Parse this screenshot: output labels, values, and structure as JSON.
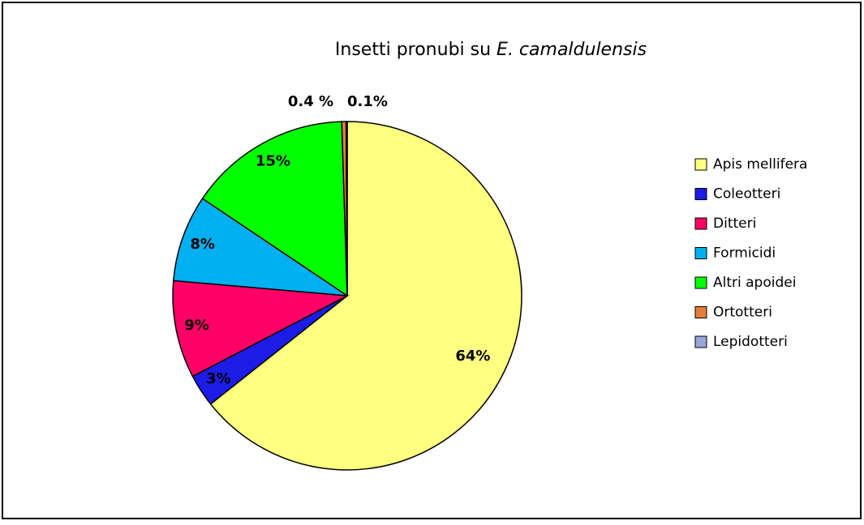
{
  "chart_data": {
    "type": "pie",
    "title": [
      "Insetti pronubi su",
      "E. camaldulensis"
    ],
    "categories": [
      "Apis mellifera",
      "Coleotteri",
      "Ditteri",
      "Formicidi",
      "Altri apoidei",
      "Ortotteri",
      "Lepidotteri"
    ],
    "values": [
      64,
      3,
      9,
      8,
      15,
      0.4,
      0.1
    ],
    "value_labels": [
      "64%",
      "3%",
      "9%",
      "8%",
      "15%",
      "0.4 %",
      "0.1%"
    ],
    "colors": [
      "#ffff80",
      "#1c1ce6",
      "#ff0066",
      "#00b0f0",
      "#00ff00",
      "#e37f3a",
      "#95a7d6"
    ],
    "legend": "right"
  }
}
